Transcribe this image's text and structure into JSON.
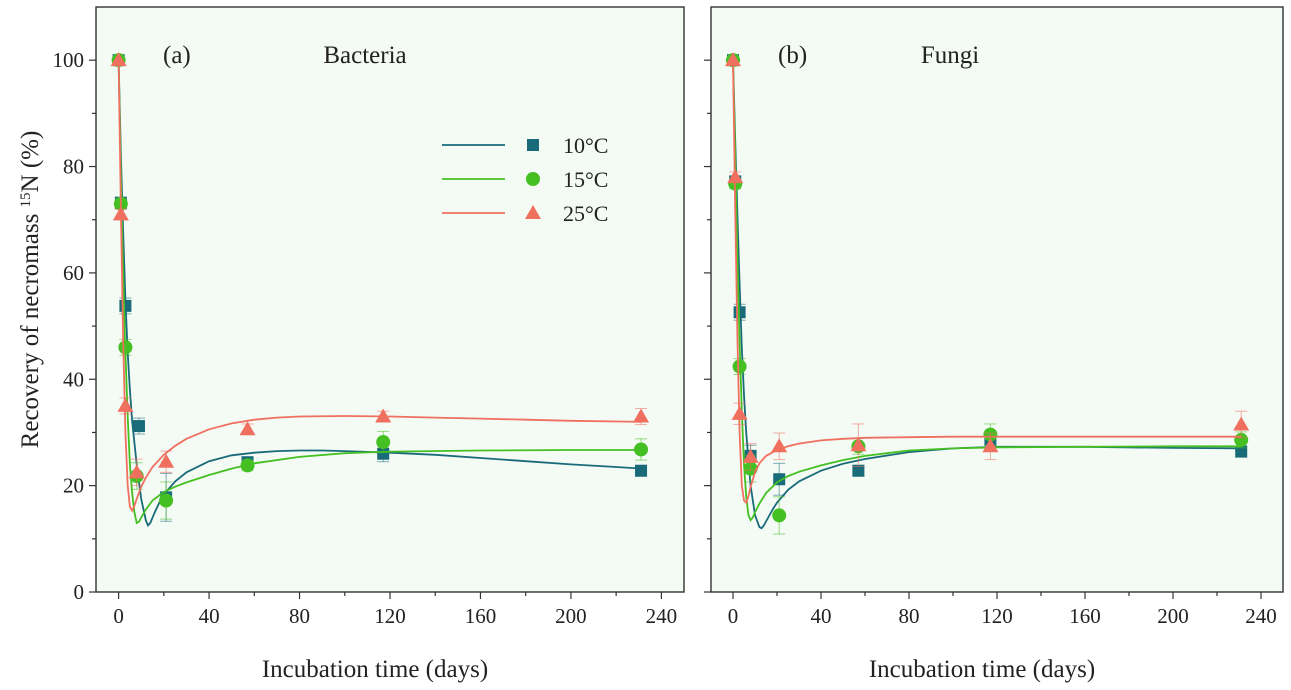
{
  "chart_data": [
    {
      "type": "scatter",
      "panel_label": "(a)",
      "title": "Bacteria",
      "xlabel": "Incubation time (days)",
      "ylabel": "Recovery of necromass ¹⁵N (%)",
      "ylabel_main": "Recovery of necromass ",
      "ylabel_sup": "15",
      "ylabel_tail": "N (%)",
      "xlim": [
        -10,
        250
      ],
      "ylim": [
        0,
        110
      ],
      "xticks": [
        0,
        40,
        80,
        120,
        160,
        200,
        240
      ],
      "yticks": [
        0,
        20,
        40,
        60,
        80,
        100
      ],
      "show_y_axis": true,
      "legend_position": "top-center",
      "series": [
        {
          "name": "10°C",
          "marker": "square",
          "color": "#1a6b7a",
          "x": [
            0,
            1,
            3,
            9,
            21,
            57,
            117,
            231
          ],
          "y": [
            100,
            73.2,
            53.8,
            31.2,
            17.8,
            24.4,
            26.0,
            22.8
          ],
          "err": [
            0,
            1,
            1.5,
            1.5,
            4.5,
            1,
            1.5,
            1
          ],
          "fit": {
            "x": [
              0,
              1,
              2,
              3,
              4,
              5,
              6,
              8,
              10,
              12,
              13,
              14,
              16,
              18,
              20,
              25,
              30,
              40,
              50,
              60,
              70,
              80,
              90,
              100,
              120,
              140,
              160,
              180,
              200,
              220,
              231
            ],
            "y": [
              100,
              82,
              68,
              55,
              45,
              38,
              32,
              24,
              17.5,
              13.5,
              12.5,
              13,
              15,
              16.8,
              18.3,
              20.8,
              22.5,
              24.6,
              25.7,
              26.2,
              26.5,
              26.6,
              26.6,
              26.5,
              26.2,
              25.8,
              25.2,
              24.6,
              24.0,
              23.5,
              23.2
            ]
          }
        },
        {
          "name": "15°C",
          "marker": "circle",
          "color": "#44c022",
          "x": [
            0,
            1,
            3,
            8,
            21,
            57,
            117,
            231
          ],
          "y": [
            100,
            73.0,
            46.0,
            21.8,
            17.2,
            23.8,
            28.2,
            26.8
          ],
          "err": [
            0,
            1,
            1.5,
            2.5,
            3.5,
            1,
            2,
            2
          ],
          "fit": {
            "x": [
              0,
              1,
              2,
              3,
              4,
              5,
              6,
              7,
              8,
              9,
              10,
              12,
              15,
              20,
              25,
              30,
              40,
              50,
              60,
              80,
              100,
              120,
              160,
              200,
              231
            ],
            "y": [
              100,
              78,
              60,
              45,
              33,
              24,
              18.5,
              15,
              13,
              13.2,
              14,
              15.5,
              17.2,
              18.8,
              19.8,
              20.6,
              22,
              23.2,
              24.2,
              25.4,
              26.1,
              26.4,
              26.6,
              26.7,
              26.7
            ]
          }
        },
        {
          "name": "25°C",
          "marker": "triangle",
          "color": "#f07060",
          "x": [
            0,
            1,
            3,
            8,
            21,
            57,
            117,
            231
          ],
          "y": [
            100,
            71.0,
            35.0,
            22.5,
            24.5,
            30.6,
            33.0,
            33.0
          ],
          "err": [
            0,
            1,
            1.5,
            2.5,
            2,
            1,
            1,
            1.5
          ],
          "fit": {
            "x": [
              0,
              1,
              2,
              3,
              4,
              5,
              6,
              7,
              8,
              10,
              12,
              15,
              20,
              25,
              30,
              40,
              50,
              60,
              70,
              80,
              100,
              120,
              140,
              160,
              180,
              200,
              231
            ],
            "y": [
              100,
              72,
              48,
              30,
              20,
              16,
              15.3,
              16.2,
              17.5,
              19.8,
              21.5,
              23.5,
              25.8,
              27.5,
              28.8,
              30.6,
              31.7,
              32.4,
              32.8,
              33.0,
              33.1,
              33.0,
              32.8,
              32.6,
              32.4,
              32.2,
              32.0
            ]
          }
        }
      ]
    },
    {
      "type": "scatter",
      "panel_label": "(b)",
      "title": "Fungi",
      "xlabel": "Incubation time (days)",
      "xlim": [
        -10,
        250
      ],
      "ylim": [
        0,
        110
      ],
      "xticks": [
        0,
        40,
        80,
        120,
        160,
        200,
        240
      ],
      "yticks": [
        0,
        20,
        40,
        60,
        80,
        100
      ],
      "show_y_axis": false,
      "series": [
        {
          "name": "10°C",
          "marker": "square",
          "color": "#1a6b7a",
          "x": [
            0,
            1,
            3,
            8,
            21,
            57,
            117,
            231
          ],
          "y": [
            100,
            77.2,
            52.6,
            25.6,
            21.2,
            22.8,
            28.6,
            26.4
          ],
          "err": [
            0,
            1,
            1.5,
            2,
            3,
            1,
            1.5,
            1
          ],
          "fit": {
            "x": [
              0,
              1,
              2,
              3,
              4,
              5,
              6,
              8,
              10,
              12,
              13,
              14,
              16,
              18,
              20,
              25,
              30,
              40,
              50,
              60,
              80,
              100,
              120,
              160,
              200,
              231
            ],
            "y": [
              100,
              85,
              71,
              58,
              46,
              37,
              30,
              20,
              14.5,
              12.2,
              12.0,
              12.5,
              14,
              15.5,
              16.8,
              19.2,
              20.8,
              22.8,
              24.1,
              25.0,
              26.3,
              27.0,
              27.3,
              27.3,
              27.1,
              27.0
            ]
          }
        },
        {
          "name": "15°C",
          "marker": "circle",
          "color": "#44c022",
          "x": [
            0,
            1,
            3,
            8,
            21,
            57,
            117,
            231
          ],
          "y": [
            100,
            76.8,
            42.4,
            23.2,
            14.4,
            27.4,
            29.6,
            28.6
          ],
          "err": [
            0,
            1,
            1.5,
            2.5,
            3.5,
            1.5,
            2,
            1.5
          ],
          "fit": {
            "x": [
              0,
              1,
              2,
              3,
              4,
              5,
              6,
              7,
              8,
              9,
              10,
              12,
              15,
              20,
              25,
              30,
              40,
              50,
              60,
              80,
              100,
              120,
              160,
              200,
              231
            ],
            "y": [
              100,
              82,
              63,
              47,
              34,
              24,
              18,
              14.5,
              13.5,
              14,
              15,
              16.6,
              18.6,
              20.6,
              21.8,
              22.6,
              23.8,
              24.8,
              25.6,
              26.6,
              27.0,
              27.2,
              27.3,
              27.4,
              27.4
            ]
          }
        },
        {
          "name": "25°C",
          "marker": "triangle",
          "color": "#f07060",
          "x": [
            0,
            1,
            3,
            8,
            21,
            57,
            117,
            231
          ],
          "y": [
            100,
            78.0,
            33.5,
            25.4,
            27.4,
            27.6,
            27.4,
            31.5
          ],
          "err": [
            0,
            1,
            2,
            2.5,
            2.5,
            4,
            2.5,
            2.5
          ],
          "fit": {
            "x": [
              0,
              1,
              2,
              3,
              4,
              5,
              6,
              7,
              8,
              10,
              12,
              15,
              20,
              25,
              30,
              40,
              50,
              60,
              80,
              100,
              120,
              160,
              200,
              231
            ],
            "y": [
              100,
              72,
              48,
              30,
              20,
              17.2,
              16.8,
              18,
              19.8,
              22.5,
              24.2,
              25.6,
              26.7,
              27.4,
              27.9,
              28.5,
              28.8,
              29.0,
              29.1,
              29.2,
              29.2,
              29.2,
              29.2,
              29.2
            ]
          }
        }
      ]
    }
  ]
}
